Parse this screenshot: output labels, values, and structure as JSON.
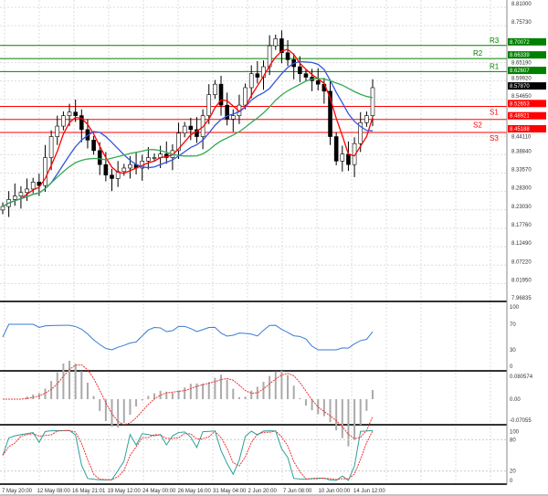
{
  "chart_data": {
    "type": "candlestick",
    "price_axis": {
      "min": 7.96835,
      "max": 8.81,
      "ticks": [
        "8.81000",
        "8.75730",
        "8.65190",
        "8.59920",
        "8.54650",
        "8.44110",
        "8.38840",
        "8.33570",
        "8.28300",
        "8.23030",
        "8.17760",
        "8.12490",
        "8.07220",
        "8.01950",
        "7.96835"
      ]
    },
    "current_price": "8.57870",
    "levels": [
      {
        "name": "R3",
        "price": 8.70072,
        "label": "8.70072",
        "color": "#008000"
      },
      {
        "name": "R2",
        "price": 8.66339,
        "label": "8.66339",
        "color": "#008000"
      },
      {
        "name": "R1",
        "price": 8.62607,
        "label": "8.62607",
        "color": "#008000"
      },
      {
        "name": "S1",
        "price": 8.52653,
        "label": "8.52653",
        "color": "#ff0000"
      },
      {
        "name": "S2",
        "price": 8.48921,
        "label": "8.48921",
        "color": "#ff0000"
      },
      {
        "name": "S3",
        "price": 8.45188,
        "label": "8.45188",
        "color": "#ff0000"
      }
    ],
    "closes": [
      8.24,
      8.26,
      8.27,
      8.28,
      8.29,
      8.31,
      8.3,
      8.38,
      8.44,
      8.47,
      8.5,
      8.51,
      8.5,
      8.46,
      8.43,
      8.4,
      8.36,
      8.33,
      8.32,
      8.34,
      8.35,
      8.36,
      8.35,
      8.37,
      8.38,
      8.38,
      8.39,
      8.38,
      8.4,
      8.45,
      8.47,
      8.46,
      8.44,
      8.5,
      8.56,
      8.59,
      8.53,
      8.49,
      8.5,
      8.53,
      8.58,
      8.62,
      8.61,
      8.64,
      8.7,
      8.72,
      8.68,
      8.66,
      8.64,
      8.62,
      8.61,
      8.6,
      8.59,
      8.57,
      8.44,
      8.37,
      8.39,
      8.36,
      8.42,
      8.48,
      8.5,
      8.58
    ],
    "moving_averages": [
      {
        "color": "#ff0000"
      },
      {
        "color": "#3355dd"
      },
      {
        "color": "#33aa55"
      }
    ],
    "x_ticks": [
      "7 May 20:00",
      "12 May 08:00",
      "16 May 21:01",
      "19 May 12:00",
      "24 May 00:00",
      "26 May 16:00",
      "31 May 04:00",
      "2 Jun 20:00",
      "7 Jun 08:00",
      "10 Jun 00:00",
      "14 Jun 12:00"
    ],
    "rsi": {
      "ticks": [
        "100",
        "70",
        "30",
        "0"
      ],
      "color": "#3a7bd5"
    },
    "macd": {
      "ticks": [
        "0.080574",
        "0.00",
        "-0.07055"
      ]
    },
    "stochastic": {
      "ticks": [
        "100",
        "80",
        "20",
        "0"
      ]
    }
  }
}
